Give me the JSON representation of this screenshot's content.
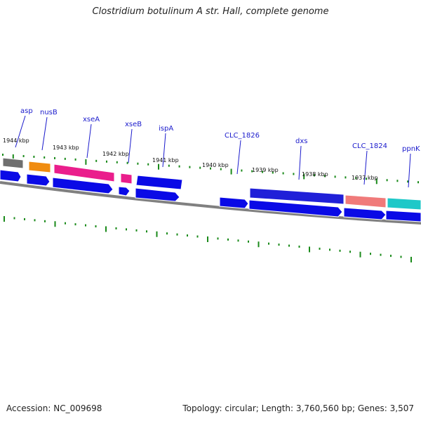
{
  "title": "Clostridium botulinum A str. Hall, complete genome",
  "footer": {
    "accession": "Accession: NC_009698",
    "summary": "Topology: circular; Length: 3,760,560 bp; Genes: 3,507"
  },
  "kbp_labels": [
    "1944 kbp",
    "1943 kbp",
    "1942 kbp",
    "1941 kbp",
    "1940 kbp",
    "1939 kbp",
    "1938 kbp",
    "1937 kbp"
  ],
  "genes": [
    {
      "label": "asp",
      "color": "#6f6f6f"
    },
    {
      "label": "nusB",
      "color": "#f08c10"
    },
    {
      "label": "xseA",
      "color": "#ea1e8c"
    },
    {
      "label": "xseB",
      "color": "#ea1e8c"
    },
    {
      "label": "ispA",
      "color": "#0a0ae6"
    },
    {
      "label": "CLC_1826",
      "color": "#0a0ae6"
    },
    {
      "label": "dxs",
      "color": "#2020d8"
    },
    {
      "label": "CLC_1824",
      "color": "#f07a7a"
    },
    {
      "label": "ppnK",
      "color": "#1ec8c8"
    }
  ],
  "colors": {
    "cds": "#0a0ae6",
    "backbone": "#808080",
    "tick": "#1a8a1a",
    "label": "#1a1acc"
  }
}
